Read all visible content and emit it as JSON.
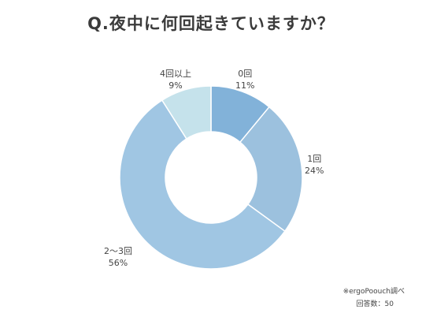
{
  "title": "Q.夜中に何回起きていますか？",
  "source_note": "※ergoPoouch調べ",
  "respondents_note": "回答数：50",
  "chart_data": {
    "type": "pie",
    "style": "donut",
    "title": "Q.夜中に何回起きていますか？",
    "categories": [
      "0回",
      "1回",
      "2～3回",
      "4回以上"
    ],
    "values": [
      11,
      24,
      56,
      9
    ],
    "value_labels": [
      "11%",
      "24%",
      "56%",
      "9%"
    ],
    "unit": "%",
    "colors": [
      "#82b2d9",
      "#9cc1de",
      "#a0c6e3",
      "#c5e2eb"
    ],
    "start": "top, clockwise"
  }
}
